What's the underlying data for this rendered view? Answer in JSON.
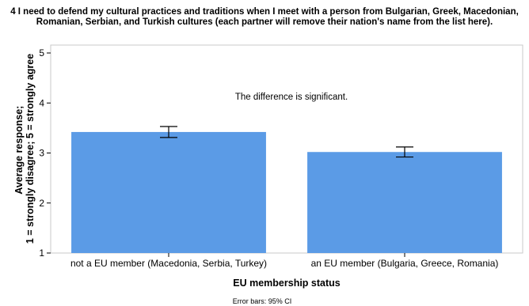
{
  "chart_data": {
    "type": "bar",
    "title": "4 I need to defend my cultural practices and traditions when I meet with a person from Bulgarian, Greek, Macedonian, Romanian, Serbian, and Turkish cultures (each partner will remove their nation's name from the list here).",
    "categories": [
      "not a EU member (Macedonia, Serbia, Turkey)",
      "an EU member (Bulgaria, Greece, Romania)"
    ],
    "values": [
      3.42,
      3.02
    ],
    "error_bars": [
      {
        "low": 3.31,
        "high": 3.53
      },
      {
        "low": 2.92,
        "high": 3.12
      }
    ],
    "xlabel": "EU membership status",
    "ylabel_lines": [
      "Average response;",
      "1 = strongly disagree; 5 = strongly agree"
    ],
    "ylim": [
      1,
      5
    ],
    "yticks": [
      "1",
      "2",
      "3",
      "4",
      "5"
    ],
    "annotation": "The difference is significant.",
    "footnote": "Error bars: 95% CI",
    "bar_color": "#5b9be6",
    "grid": false,
    "legend": "none"
  }
}
